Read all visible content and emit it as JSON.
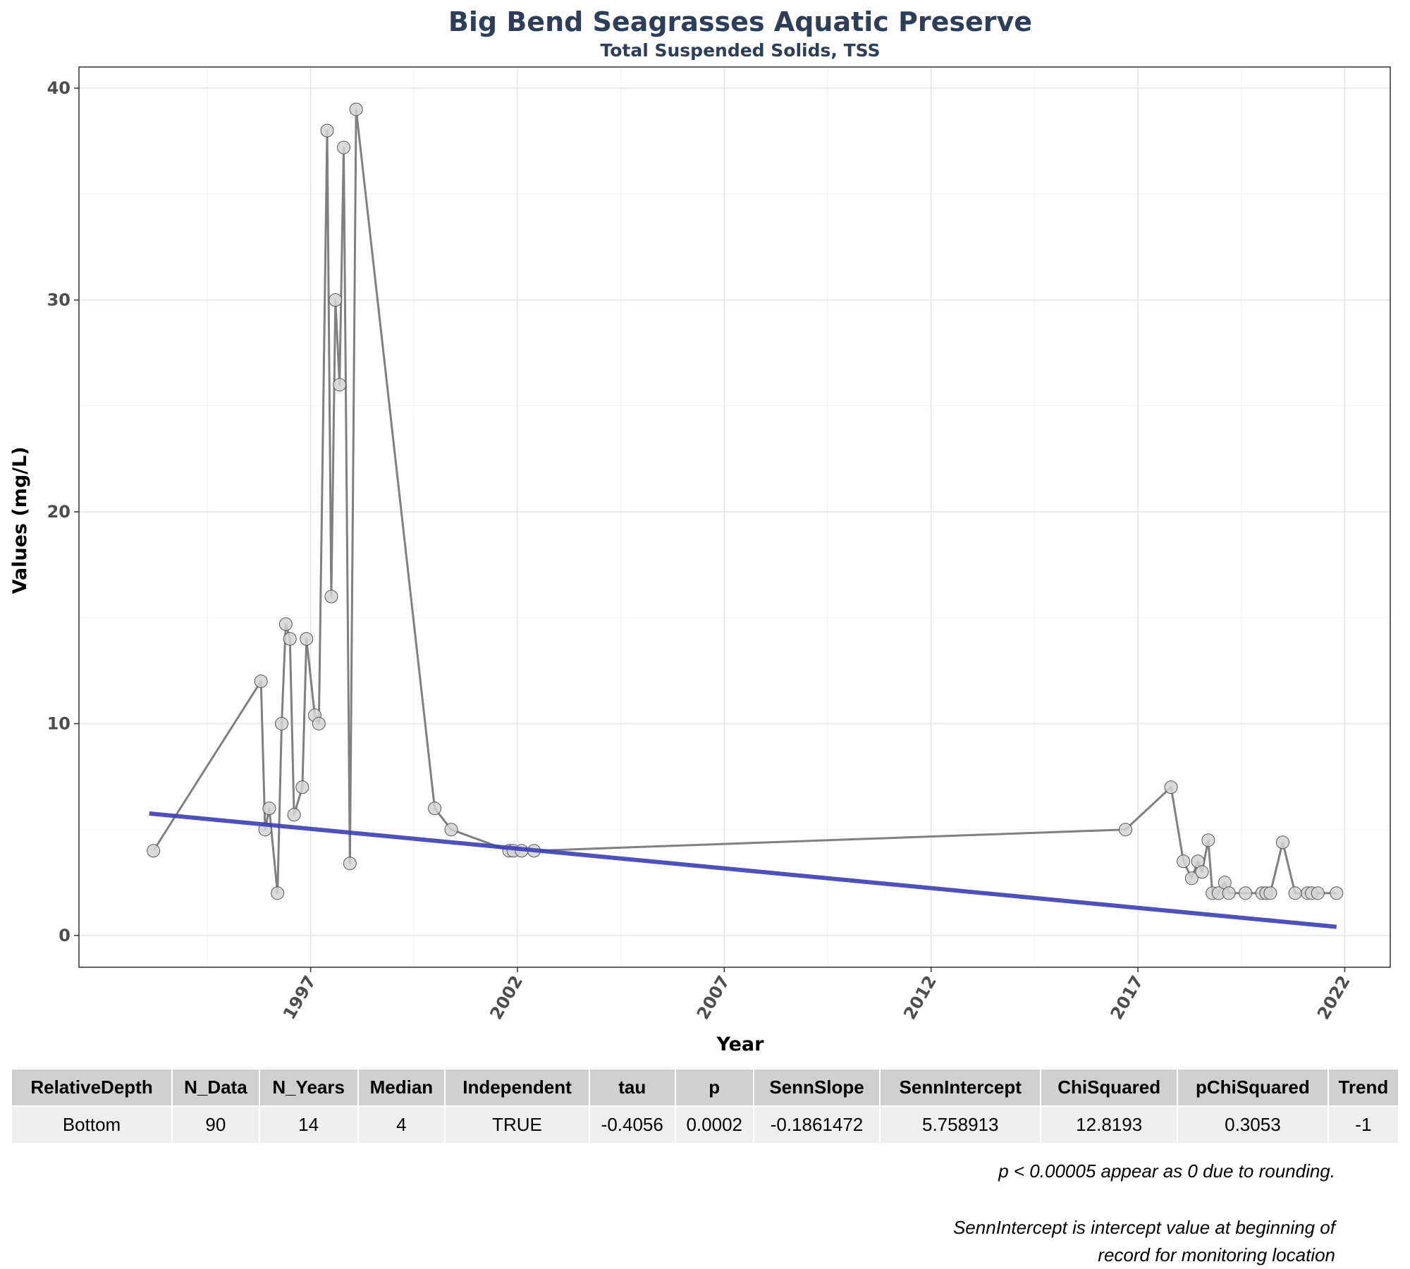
{
  "chart_data": {
    "type": "line",
    "title": "Big Bend Seagrasses Aquatic Preserve",
    "subtitle": "Total Suspended Solids, TSS",
    "xlabel": "Year",
    "ylabel": "Values (mg/L)",
    "xlim": [
      1991.4,
      2023.1
    ],
    "ylim": [
      -1.5,
      41
    ],
    "x_ticks": [
      1997,
      2002,
      2007,
      2012,
      2017,
      2022
    ],
    "y_ticks": [
      0,
      10,
      20,
      30,
      40
    ],
    "grid": true,
    "colors": {
      "line": "#808080",
      "point_fill": "#d3d3d3",
      "point_stroke": "#555555",
      "trend": "#3c3cbe",
      "title": "#2c3e5a"
    },
    "series": [
      {
        "values": [
          [
            1993.2,
            4
          ],
          [
            1995.8,
            12
          ],
          [
            1995.9,
            5
          ],
          [
            1996.0,
            6
          ],
          [
            1996.2,
            2
          ],
          [
            1996.3,
            10
          ],
          [
            1996.4,
            14.7
          ],
          [
            1996.5,
            14
          ],
          [
            1996.6,
            5.7
          ],
          [
            1996.8,
            7
          ],
          [
            1996.9,
            14
          ],
          [
            1997.1,
            10.4
          ],
          [
            1997.2,
            10
          ],
          [
            1997.4,
            38
          ],
          [
            1997.5,
            16
          ],
          [
            1997.6,
            30
          ],
          [
            1997.7,
            26
          ],
          [
            1997.8,
            37.2
          ],
          [
            1997.95,
            3.4
          ],
          [
            1998.1,
            39
          ],
          [
            2000.0,
            6
          ],
          [
            2000.4,
            5
          ],
          [
            2001.8,
            4
          ],
          [
            2001.9,
            4
          ],
          [
            2002.1,
            4
          ],
          [
            2002.4,
            4
          ],
          [
            2016.7,
            5
          ],
          [
            2017.8,
            7
          ],
          [
            2018.1,
            3.5
          ],
          [
            2018.3,
            2.7
          ],
          [
            2018.45,
            3.5
          ],
          [
            2018.55,
            3
          ],
          [
            2018.7,
            4.5
          ],
          [
            2018.8,
            2
          ],
          [
            2018.95,
            2
          ],
          [
            2019.1,
            2.5
          ],
          [
            2019.2,
            2
          ],
          [
            2019.6,
            2
          ],
          [
            2020.0,
            2
          ],
          [
            2020.1,
            2
          ],
          [
            2020.2,
            2
          ],
          [
            2020.5,
            4.4
          ],
          [
            2020.8,
            2
          ],
          [
            2021.1,
            2
          ],
          [
            2021.2,
            2
          ],
          [
            2021.35,
            2
          ],
          [
            2021.8,
            2
          ]
        ]
      }
    ],
    "trend_line": {
      "x": [
        1993.1,
        2021.8
      ],
      "y": [
        5.758913,
        0.41
      ]
    }
  },
  "table": {
    "headers": [
      "RelativeDepth",
      "N_Data",
      "N_Years",
      "Median",
      "Independent",
      "tau",
      "p",
      "SennSlope",
      "SennIntercept",
      "ChiSquared",
      "pChiSquared",
      "Trend"
    ],
    "row": [
      "Bottom",
      "90",
      "14",
      "4",
      "TRUE",
      "-0.4056",
      "0.0002",
      "-0.1861472",
      "5.758913",
      "12.8193",
      "0.3053",
      "-1"
    ]
  },
  "notes": {
    "rounding": "p < 0.00005 appear as 0 due to rounding.",
    "intercept_line1": "SennIntercept is intercept value at beginning of",
    "intercept_line2": "record for monitoring location"
  }
}
